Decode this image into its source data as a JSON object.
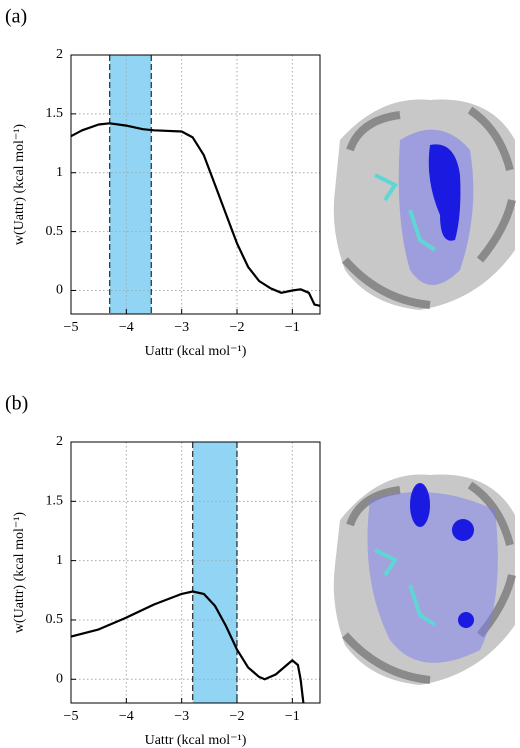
{
  "chart_data": [
    {
      "type": "line",
      "panel_label": "(a)",
      "x_label": "Uattr (kcal mol⁻¹)",
      "y_label": "w(Uattr) (kcal mol⁻¹)",
      "xlim": [
        -5,
        -0.5
      ],
      "ylim": [
        -0.2,
        2
      ],
      "xticks": [
        {
          "value": -5,
          "label": "−5"
        },
        {
          "value": -4,
          "label": "−4"
        },
        {
          "value": -3,
          "label": "−3"
        },
        {
          "value": -2,
          "label": "−2"
        },
        {
          "value": -1,
          "label": "−1"
        }
      ],
      "yticks": [
        0,
        0.5,
        1,
        1.5,
        2
      ],
      "grid": true,
      "shaded_range": [
        -4.3,
        -3.55
      ],
      "shade_color": "#92d4f4",
      "color": "#000000",
      "x": [
        -5,
        -4.8,
        -4.5,
        -4.3,
        -4,
        -3.7,
        -3.5,
        -3,
        -2.8,
        -2.6,
        -2.4,
        -2.2,
        -2,
        -1.8,
        -1.6,
        -1.4,
        -1.2,
        -1,
        -0.85,
        -0.7,
        -0.6,
        -0.5
      ],
      "values": [
        1.31,
        1.36,
        1.41,
        1.42,
        1.4,
        1.37,
        1.36,
        1.35,
        1.3,
        1.15,
        0.9,
        0.65,
        0.4,
        0.2,
        0.08,
        0.02,
        -0.02,
        0,
        0.01,
        -0.02,
        -0.12,
        -0.13
      ]
    },
    {
      "type": "line",
      "panel_label": "(b)",
      "x_label": "Uattr (kcal mol⁻¹)",
      "y_label": "w(Uattr) (kcal mol⁻¹)",
      "xlim": [
        -5,
        -0.5
      ],
      "ylim": [
        -0.2,
        2
      ],
      "xticks": [
        {
          "value": -5,
          "label": "−5"
        },
        {
          "value": -4,
          "label": "−4"
        },
        {
          "value": -3,
          "label": "−3"
        },
        {
          "value": -2,
          "label": "−2"
        },
        {
          "value": -1,
          "label": "−1"
        }
      ],
      "yticks": [
        0,
        0.5,
        1,
        1.5,
        2
      ],
      "grid": true,
      "shaded_range": [
        -2.8,
        -2
      ],
      "shade_color": "#92d4f4",
      "color": "#000000",
      "x": [
        -5,
        -4.5,
        -4,
        -3.5,
        -3,
        -2.8,
        -2.6,
        -2.4,
        -2.2,
        -2,
        -1.8,
        -1.6,
        -1.5,
        -1.3,
        -1.1,
        -1,
        -0.9,
        -0.85,
        -0.8
      ],
      "values": [
        0.36,
        0.42,
        0.52,
        0.63,
        0.72,
        0.74,
        0.72,
        0.62,
        0.45,
        0.25,
        0.1,
        0.02,
        0,
        0.04,
        0.12,
        0.16,
        0.12,
        0,
        -0.2
      ]
    }
  ]
}
